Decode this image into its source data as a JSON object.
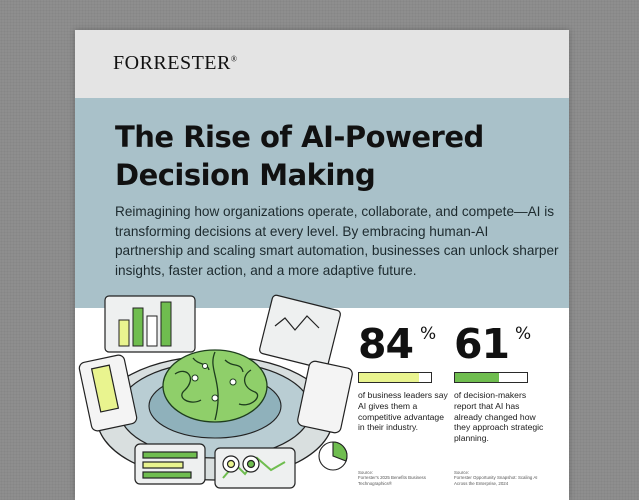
{
  "brand": {
    "name": "FORRESTER",
    "mark": "®"
  },
  "headline": {
    "line1": "The Rise of AI-Powered",
    "line2": "Decision Making"
  },
  "intro": "Reimagining how organizations operate, collaborate, and compete—AI is transforming decisions at every level. By embracing human-AI partnership and scaling smart automation, businesses can unlock sharper insights, faster action, and a more adaptive future.",
  "stats": [
    {
      "value": "84",
      "unit": "%",
      "fraction": 0.84,
      "text": "of business leaders say AI gives them a competitive advantage in their industry.",
      "source_label": "Source:",
      "source_text": "Forrester's 2025 Benefits Business Technographics®"
    },
    {
      "value": "61",
      "unit": "%",
      "fraction": 0.61,
      "text": "of decision-makers report that AI has already changed how they approach strategic planning.",
      "source_label": "Source:",
      "source_text": "Forrester Opportunity Snapshot: Scaling AI Across the Enterprise, 2024"
    }
  ],
  "colors": {
    "hero_bg": "#a9c1c9",
    "accent_light": "#e9f48f",
    "accent_green": "#6fbd4f",
    "header_bg": "#e4e4e4"
  },
  "illustration": {
    "subject": "brain-hologram-dashboard-illustration"
  }
}
